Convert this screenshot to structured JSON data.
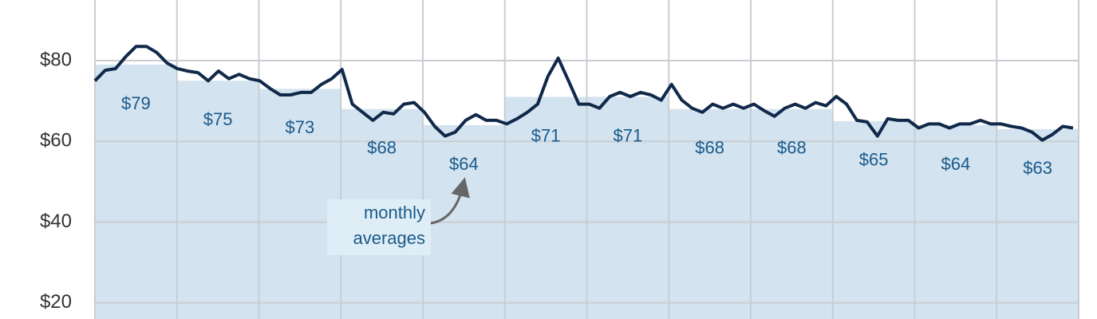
{
  "chart_data": {
    "type": "bar",
    "categories": [
      null,
      null,
      null,
      null,
      null,
      null,
      null,
      null,
      null,
      null,
      null,
      null
    ],
    "values": [
      79,
      75,
      73,
      68,
      64,
      71,
      71,
      68,
      68,
      65,
      64,
      63
    ],
    "value_labels": [
      "$79",
      "$75",
      "$73",
      "$68",
      "$64",
      "$71",
      "$71",
      "$68",
      "$68",
      "$65",
      "$64",
      "$63"
    ],
    "color": "#d3e3f0",
    "line": {
      "color": "#10294a",
      "values": [
        75,
        77.6,
        78,
        81,
        83.5,
        83.5,
        82,
        79.4,
        78,
        77.4,
        77,
        75,
        77.4,
        75.5,
        76.6,
        75.5,
        75,
        73.1,
        71.5,
        71.5,
        72.1,
        72.1,
        74.1,
        75.5,
        77.8,
        69.2,
        67.2,
        65.2,
        67.2,
        66.8,
        69.2,
        69.6,
        67.2,
        63.7,
        61.3,
        62.3,
        65.2,
        66.6,
        65.2,
        65.2,
        64.3,
        65.6,
        67.2,
        69.2,
        76.1,
        80.6,
        75,
        69.2,
        69.2,
        68.2,
        71.1,
        72.1,
        71.1,
        72.1,
        71.5,
        70.2,
        74.1,
        70.2,
        68.2,
        67.2,
        69.2,
        68.2,
        69.2,
        68.2,
        69.2,
        67.6,
        66.2,
        68.2,
        69.2,
        68.2,
        69.6,
        68.8,
        71.1,
        69.2,
        65.2,
        64.8,
        61.3,
        65.6,
        65.2,
        65.2,
        63.3,
        64.3,
        64.3,
        63.3,
        64.3,
        64.3,
        65.2,
        64.3,
        64.3,
        63.7,
        63.3,
        62.3,
        60.3,
        61.7,
        63.7,
        63.3
      ]
    },
    "annotation": [
      "monthly",
      "averages"
    ],
    "ylim": [
      16,
      95
    ],
    "yticks": [
      {
        "value": 20,
        "label": "$20"
      },
      {
        "value": 40,
        "label": "$40"
      },
      {
        "value": 60,
        "label": "$60"
      },
      {
        "value": 80,
        "label": "$80"
      }
    ],
    "grid": true
  }
}
